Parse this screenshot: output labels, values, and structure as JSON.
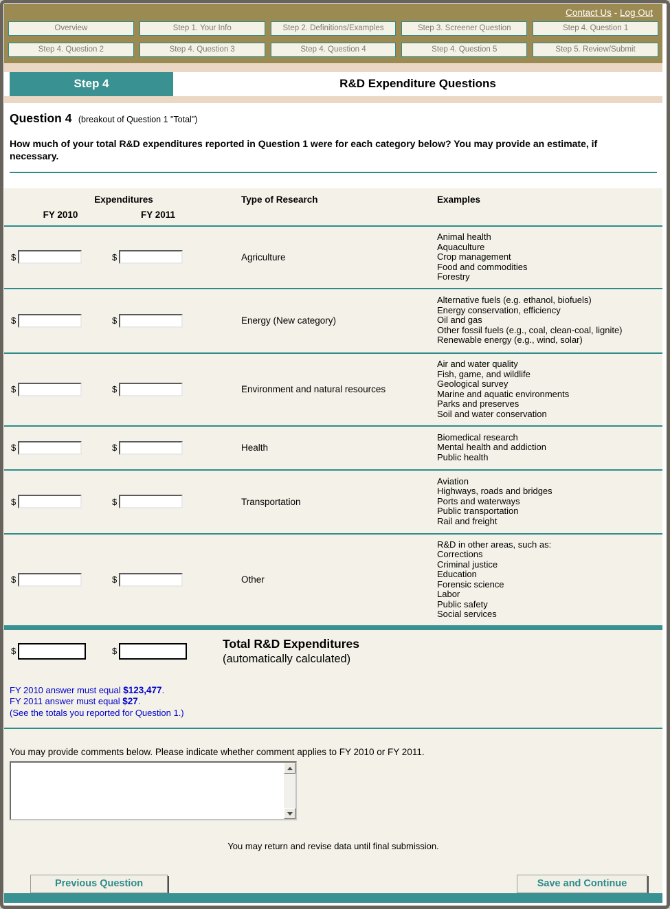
{
  "colors": {
    "gold_bar": "#9b8a52",
    "teal": "#3a9191",
    "teal_line": "#2e8b8b",
    "pink_band": "#ebd8c4",
    "cream": "#f4f2e8",
    "validation_blue": "#0000cc",
    "button_text": "#2e8b8b"
  },
  "header": {
    "contact_us": "Contact Us",
    "separator": "-",
    "log_out": "Log Out",
    "nav_row1": [
      "Overview",
      "Step 1. Your Info",
      "Step 2. Definitions/Examples",
      "Step 3. Screener Question",
      "Step 4. Question 1"
    ],
    "nav_row2": [
      "Step 4. Question 2",
      "Step 4. Question 3",
      "Step 4. Question 4",
      "Step 4. Question 5",
      "Step 5. Review/Submit"
    ]
  },
  "step_banner": {
    "step": "Step 4",
    "title": "R&D Expenditure Questions"
  },
  "question": {
    "title": "Question 4",
    "subtitle": "(breakout of Question 1 \"Total\")",
    "instructions": "How much of your total R&D expenditures reported in Question 1 were for each category below? You may provide an estimate, if necessary."
  },
  "table": {
    "expenditures_header": "Expenditures",
    "fy2010_header": "FY 2010",
    "fy2011_header": "FY 2011",
    "type_header": "Type of Research",
    "examples_header": "Examples",
    "currency_symbol": "$",
    "rows": [
      {
        "type": "Agriculture",
        "fy2010_value": "",
        "fy2011_value": "",
        "examples": [
          "Animal health",
          "Aquaculture",
          "Crop management",
          "Food and commodities",
          "Forestry"
        ]
      },
      {
        "type": "Energy (New category)",
        "fy2010_value": "",
        "fy2011_value": "",
        "examples": [
          "Alternative fuels (e.g. ethanol, biofuels)",
          "Energy conservation, efficiency",
          "Oil and gas",
          "Other fossil fuels (e.g., coal, clean-coal, lignite)",
          "Renewable energy (e.g., wind, solar)"
        ]
      },
      {
        "type": "Environment and natural resources",
        "fy2010_value": "",
        "fy2011_value": "",
        "examples": [
          "Air and water quality",
          "Fish, game, and wildlife",
          "Geological survey",
          "Marine and aquatic environments",
          "Parks and preserves",
          "Soil and water conservation"
        ]
      },
      {
        "type": "Health",
        "fy2010_value": "",
        "fy2011_value": "",
        "examples": [
          "Biomedical research",
          "Mental health and addiction",
          "Public health"
        ]
      },
      {
        "type": "Transportation",
        "fy2010_value": "",
        "fy2011_value": "",
        "examples": [
          "Aviation",
          "Highways, roads and bridges",
          "Ports and waterways",
          "Public transportation",
          "Rail and freight"
        ]
      },
      {
        "type": "Other",
        "fy2010_value": "",
        "fy2011_value": "",
        "examples": [
          "R&D in other areas, such as:",
          "Corrections",
          "Criminal justice",
          "Education",
          "Forensic science",
          "Labor",
          "Public safety",
          "Social services"
        ]
      }
    ],
    "total": {
      "label": "Total R&D Expenditures",
      "sublabel": "(automatically calculated)",
      "fy2010_value": "",
      "fy2011_value": ""
    }
  },
  "validation": {
    "line1_prefix": "FY 2010 answer must equal ",
    "line1_amount": "$123,477",
    "line2_prefix": "FY 2011 answer must equal ",
    "line2_amount": "$27",
    "period": ".",
    "note": "(See the totals you reported for Question 1.)"
  },
  "comments": {
    "label": "You may provide comments below. Please indicate whether comment applies to FY 2010 or FY 2011.",
    "value": ""
  },
  "footer": {
    "revise_note": "You may return and revise data until final submission.",
    "previous_button": "Previous Question",
    "save_button": "Save and Continue"
  }
}
